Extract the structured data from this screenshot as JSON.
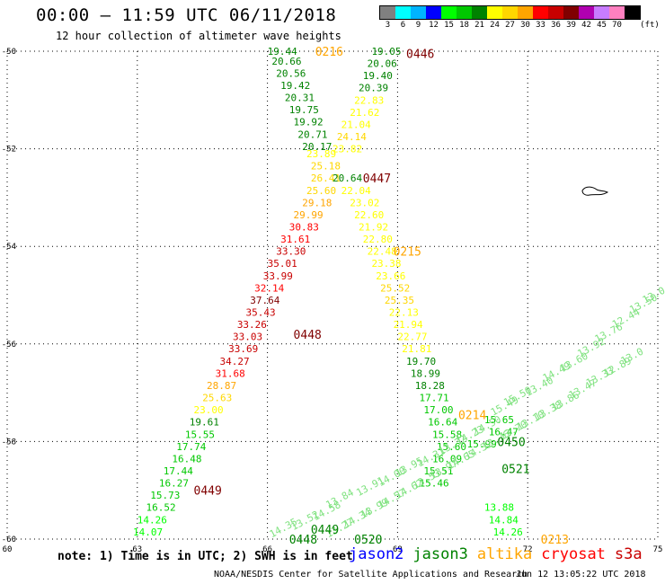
{
  "header": {
    "title": "00:00 – 11:59 UTC 06/11/2018",
    "subtitle": "12 hour collection of altimeter wave heights"
  },
  "color_legend": {
    "unit": "(ft)",
    "bins": [
      {
        "label": "3",
        "color": "#808080"
      },
      {
        "label": "6",
        "color": "#00ffff"
      },
      {
        "label": "9",
        "color": "#00b4ff"
      },
      {
        "label": "12",
        "color": "#0000ff"
      },
      {
        "label": "15",
        "color": "#00ff00"
      },
      {
        "label": "18",
        "color": "#00c800"
      },
      {
        "label": "21",
        "color": "#008200"
      },
      {
        "label": "24",
        "color": "#ffff00"
      },
      {
        "label": "27",
        "color": "#ffd700"
      },
      {
        "label": "30",
        "color": "#ffa500"
      },
      {
        "label": "33",
        "color": "#ff0000"
      },
      {
        "label": "36",
        "color": "#c80000"
      },
      {
        "label": "39",
        "color": "#800000"
      },
      {
        "label": "42",
        "color": "#b000b0"
      },
      {
        "label": "45",
        "color": "#c87cff"
      },
      {
        "label": "70",
        "color": "#ff80c0"
      },
      {
        "label": "",
        "color": "#000000"
      }
    ]
  },
  "map": {
    "lon_range": [
      60,
      75
    ],
    "lat_range": [
      -60,
      -50
    ],
    "lon_ticks": [
      "60",
      "63",
      "66",
      "69",
      "72",
      "75"
    ],
    "lat_ticks": [
      "-50",
      "-52",
      "-54",
      "-56",
      "-58",
      "-60"
    ],
    "time_labels": [
      {
        "text": "0216",
        "lon": 67.1,
        "lat": -50.0,
        "color": "#ffa500"
      },
      {
        "text": "0446",
        "lon": 69.2,
        "lat": -50.05,
        "color": "#800000"
      },
      {
        "text": "0447",
        "lon": 68.2,
        "lat": -52.6,
        "color": "#800000"
      },
      {
        "text": "0215",
        "lon": 68.9,
        "lat": -54.1,
        "color": "#ffa500"
      },
      {
        "text": "0448",
        "lon": 66.6,
        "lat": -55.8,
        "color": "#800000"
      },
      {
        "text": "0449",
        "lon": 64.3,
        "lat": -59.0,
        "color": "#800000"
      },
      {
        "text": "0214",
        "lon": 70.4,
        "lat": -57.45,
        "color": "#ffa500"
      },
      {
        "text": "0450",
        "lon": 71.3,
        "lat": -58.0,
        "color": "#008200"
      },
      {
        "text": "0521",
        "lon": 71.4,
        "lat": -58.55,
        "color": "#008200"
      },
      {
        "text": "0449",
        "lon": 67.0,
        "lat": -59.8,
        "color": "#008200"
      },
      {
        "text": "0448",
        "lon": 66.5,
        "lat": -60.0,
        "color": "#008200"
      },
      {
        "text": "0520",
        "lon": 68.0,
        "lat": -60.0,
        "color": "#008200"
      },
      {
        "text": "0213",
        "lon": 72.3,
        "lat": -60.0,
        "color": "#ffa500"
      }
    ],
    "tracks": [
      {
        "name": "altika-asc-1",
        "points": [
          [
            "19.44",
            66.0,
            -50.0
          ],
          [
            "20.66",
            66.1,
            -50.2
          ],
          [
            "20.56",
            66.2,
            -50.45
          ],
          [
            "19.42",
            66.3,
            -50.7
          ],
          [
            "20.31",
            66.4,
            -50.95
          ],
          [
            "19.75",
            66.5,
            -51.2
          ],
          [
            "19.92",
            66.6,
            -51.45
          ],
          [
            "20.71",
            66.7,
            -51.7
          ],
          [
            "20.17",
            66.8,
            -51.95
          ],
          [
            "23.89",
            66.9,
            -52.1
          ],
          [
            "25.18",
            67.0,
            -52.35
          ],
          [
            "26.41",
            67.0,
            -52.6
          ],
          [
            "25.60",
            66.9,
            -52.85
          ],
          [
            "29.18",
            66.8,
            -53.1
          ],
          [
            "29.99",
            66.6,
            -53.35
          ],
          [
            "30.83",
            66.5,
            -53.6
          ],
          [
            "31.61",
            66.3,
            -53.85
          ],
          [
            "33.30",
            66.2,
            -54.1
          ],
          [
            "35.01",
            66.0,
            -54.35
          ],
          [
            "33.99",
            65.9,
            -54.6
          ],
          [
            "32.14",
            65.7,
            -54.85
          ],
          [
            "37.64",
            65.6,
            -55.1
          ],
          [
            "35.43",
            65.5,
            -55.35
          ],
          [
            "33.26",
            65.3,
            -55.6
          ],
          [
            "33.03",
            65.2,
            -55.85
          ],
          [
            "33.69",
            65.1,
            -56.1
          ],
          [
            "34.27",
            64.9,
            -56.35
          ],
          [
            "31.68",
            64.8,
            -56.6
          ],
          [
            "28.87",
            64.6,
            -56.85
          ],
          [
            "25.63",
            64.5,
            -57.1
          ],
          [
            "23.00",
            64.3,
            -57.35
          ],
          [
            "19.61",
            64.2,
            -57.6
          ],
          [
            "15.55",
            64.1,
            -57.85
          ],
          [
            "17.74",
            63.9,
            -58.1
          ],
          [
            "16.48",
            63.8,
            -58.35
          ],
          [
            "17.44",
            63.6,
            -58.6
          ],
          [
            "16.27",
            63.5,
            -58.85
          ],
          [
            "15.73",
            63.3,
            -59.1
          ],
          [
            "16.52",
            63.2,
            -59.35
          ],
          [
            "14.26",
            63.0,
            -59.6
          ],
          [
            "14.07",
            62.9,
            -59.85
          ],
          [
            "14.83",
            62.8,
            -60.1
          ],
          [
            "15.29",
            62.6,
            -60.35
          ],
          [
            "16.70",
            62.5,
            -60.6
          ]
        ]
      },
      {
        "name": "jason3-desc-1",
        "points": [
          [
            "19.05",
            68.4,
            -50.0
          ],
          [
            "20.06",
            68.3,
            -50.25
          ],
          [
            "19.40",
            68.2,
            -50.5
          ],
          [
            "20.39",
            68.1,
            -50.75
          ],
          [
            "22.83",
            68.0,
            -51.0
          ],
          [
            "21.62",
            67.9,
            -51.25
          ],
          [
            "21.04",
            67.7,
            -51.5
          ],
          [
            "24.14",
            67.6,
            -51.75
          ],
          [
            "23.82",
            67.5,
            -52.0
          ],
          [
            "20.64",
            67.5,
            -52.6
          ],
          [
            "22.04",
            67.7,
            -52.85
          ],
          [
            "23.02",
            67.9,
            -53.1
          ],
          [
            "22.60",
            68.0,
            -53.35
          ],
          [
            "21.92",
            68.1,
            -53.6
          ],
          [
            "22.80",
            68.2,
            -53.85
          ],
          [
            "22.48",
            68.3,
            -54.1
          ],
          [
            "23.38",
            68.4,
            -54.35
          ],
          [
            "23.66",
            68.5,
            -54.6
          ],
          [
            "25.52",
            68.6,
            -54.85
          ],
          [
            "25.35",
            68.7,
            -55.1
          ],
          [
            "22.13",
            68.8,
            -55.35
          ],
          [
            "21.94",
            68.9,
            -55.6
          ],
          [
            "22.77",
            69.0,
            -55.85
          ],
          [
            "21.81",
            69.1,
            -56.1
          ],
          [
            "19.70",
            69.2,
            -56.35
          ],
          [
            "18.99",
            69.3,
            -56.6
          ],
          [
            "18.28",
            69.4,
            -56.85
          ],
          [
            "17.71",
            69.5,
            -57.1
          ],
          [
            "17.00",
            69.6,
            -57.35
          ],
          [
            "16.64",
            69.7,
            -57.6
          ],
          [
            "15.58",
            69.8,
            -57.85
          ],
          [
            "15.60",
            69.9,
            -58.1
          ],
          [
            "16.09",
            69.8,
            -58.35
          ],
          [
            "15.51",
            69.6,
            -58.6
          ],
          [
            "15.46",
            69.5,
            -58.85
          ]
        ]
      },
      {
        "name": "jason3-desc-2",
        "points": [
          [
            "15.65",
            71.0,
            -57.55
          ],
          [
            "16.47",
            71.1,
            -57.8
          ],
          [
            "15.99",
            70.6,
            -58.05
          ],
          [
            "13.88",
            71.0,
            -59.35
          ],
          [
            "14.84",
            71.1,
            -59.6
          ],
          [
            "14.26",
            71.2,
            -59.85
          ],
          [
            "15.55",
            71.3,
            -60.1
          ],
          [
            "16.55",
            71.2,
            -60.35
          ]
        ]
      },
      {
        "name": "s3a-asc-light",
        "points": [
          [
            "13.42",
            65.6,
            -60.2
          ],
          [
            "14.35",
            66.1,
            -59.9
          ],
          [
            "13.52",
            66.6,
            -59.75
          ],
          [
            "14.58",
            67.1,
            -59.55
          ],
          [
            "13.84",
            67.4,
            -59.3
          ],
          [
            "13.91",
            68.1,
            -59.05
          ],
          [
            "14.00",
            68.6,
            -58.85
          ],
          [
            "13.95",
            69.0,
            -58.65
          ],
          [
            "14.31",
            69.5,
            -58.45
          ],
          [
            "13.32",
            70.0,
            -58.2
          ],
          [
            "14.23",
            70.4,
            -58.0
          ],
          [
            "14.50",
            70.8,
            -57.8
          ],
          [
            "15.49",
            71.2,
            -57.4
          ],
          [
            "15.50",
            71.5,
            -57.2
          ],
          [
            "13.40",
            72.0,
            -57.0
          ],
          [
            "14.49",
            72.4,
            -56.7
          ],
          [
            "13.60",
            72.8,
            -56.5
          ],
          [
            "13.92",
            73.2,
            -56.2
          ],
          [
            "13.76",
            73.6,
            -55.9
          ],
          [
            "12.44",
            74.0,
            -55.6
          ],
          [
            "13.50",
            74.4,
            -55.3
          ],
          [
            "13.0",
            74.7,
            -55.1
          ]
        ]
      },
      {
        "name": "s3a-asc-light-2",
        "points": [
          [
            "13.34",
            67.0,
            -60.1
          ],
          [
            "13.27",
            67.4,
            -59.9
          ],
          [
            "14.34",
            67.8,
            -59.7
          ],
          [
            "13.99",
            68.2,
            -59.5
          ],
          [
            "14.57",
            68.6,
            -59.3
          ],
          [
            "14.62",
            69.0,
            -59.1
          ],
          [
            "13.53",
            69.4,
            -58.9
          ],
          [
            "13.97",
            69.8,
            -58.7
          ],
          [
            "14.65",
            70.2,
            -58.5
          ],
          [
            "14.32",
            70.6,
            -58.3
          ],
          [
            "13.76",
            71.0,
            -58.1
          ],
          [
            "13.70",
            71.4,
            -57.9
          ],
          [
            "13.10",
            71.8,
            -57.7
          ],
          [
            "13.38",
            72.2,
            -57.5
          ],
          [
            "13.86",
            72.6,
            -57.3
          ],
          [
            "13.47",
            73.0,
            -57.05
          ],
          [
            "13.33",
            73.4,
            -56.8
          ],
          [
            "12.89",
            73.8,
            -56.6
          ],
          [
            "13.0",
            74.2,
            -56.35
          ]
        ]
      }
    ]
  },
  "note": "note: 1) Time is in UTC; 2) SWH is in feet",
  "satellites": [
    {
      "label": "jason2",
      "color": "#0000ff"
    },
    {
      "label": "jason3",
      "color": "#008200"
    },
    {
      "label": "altika",
      "color": "#ffa500"
    },
    {
      "label": "cryosat",
      "color": "#ff0000"
    },
    {
      "label": "s3a",
      "color": "#c80000"
    }
  ],
  "footer": {
    "source": "NOAA/NESDIS Center for Satellite Applications and Research",
    "timestamp": "Jun 12 13:05:22 UTC 2018"
  }
}
